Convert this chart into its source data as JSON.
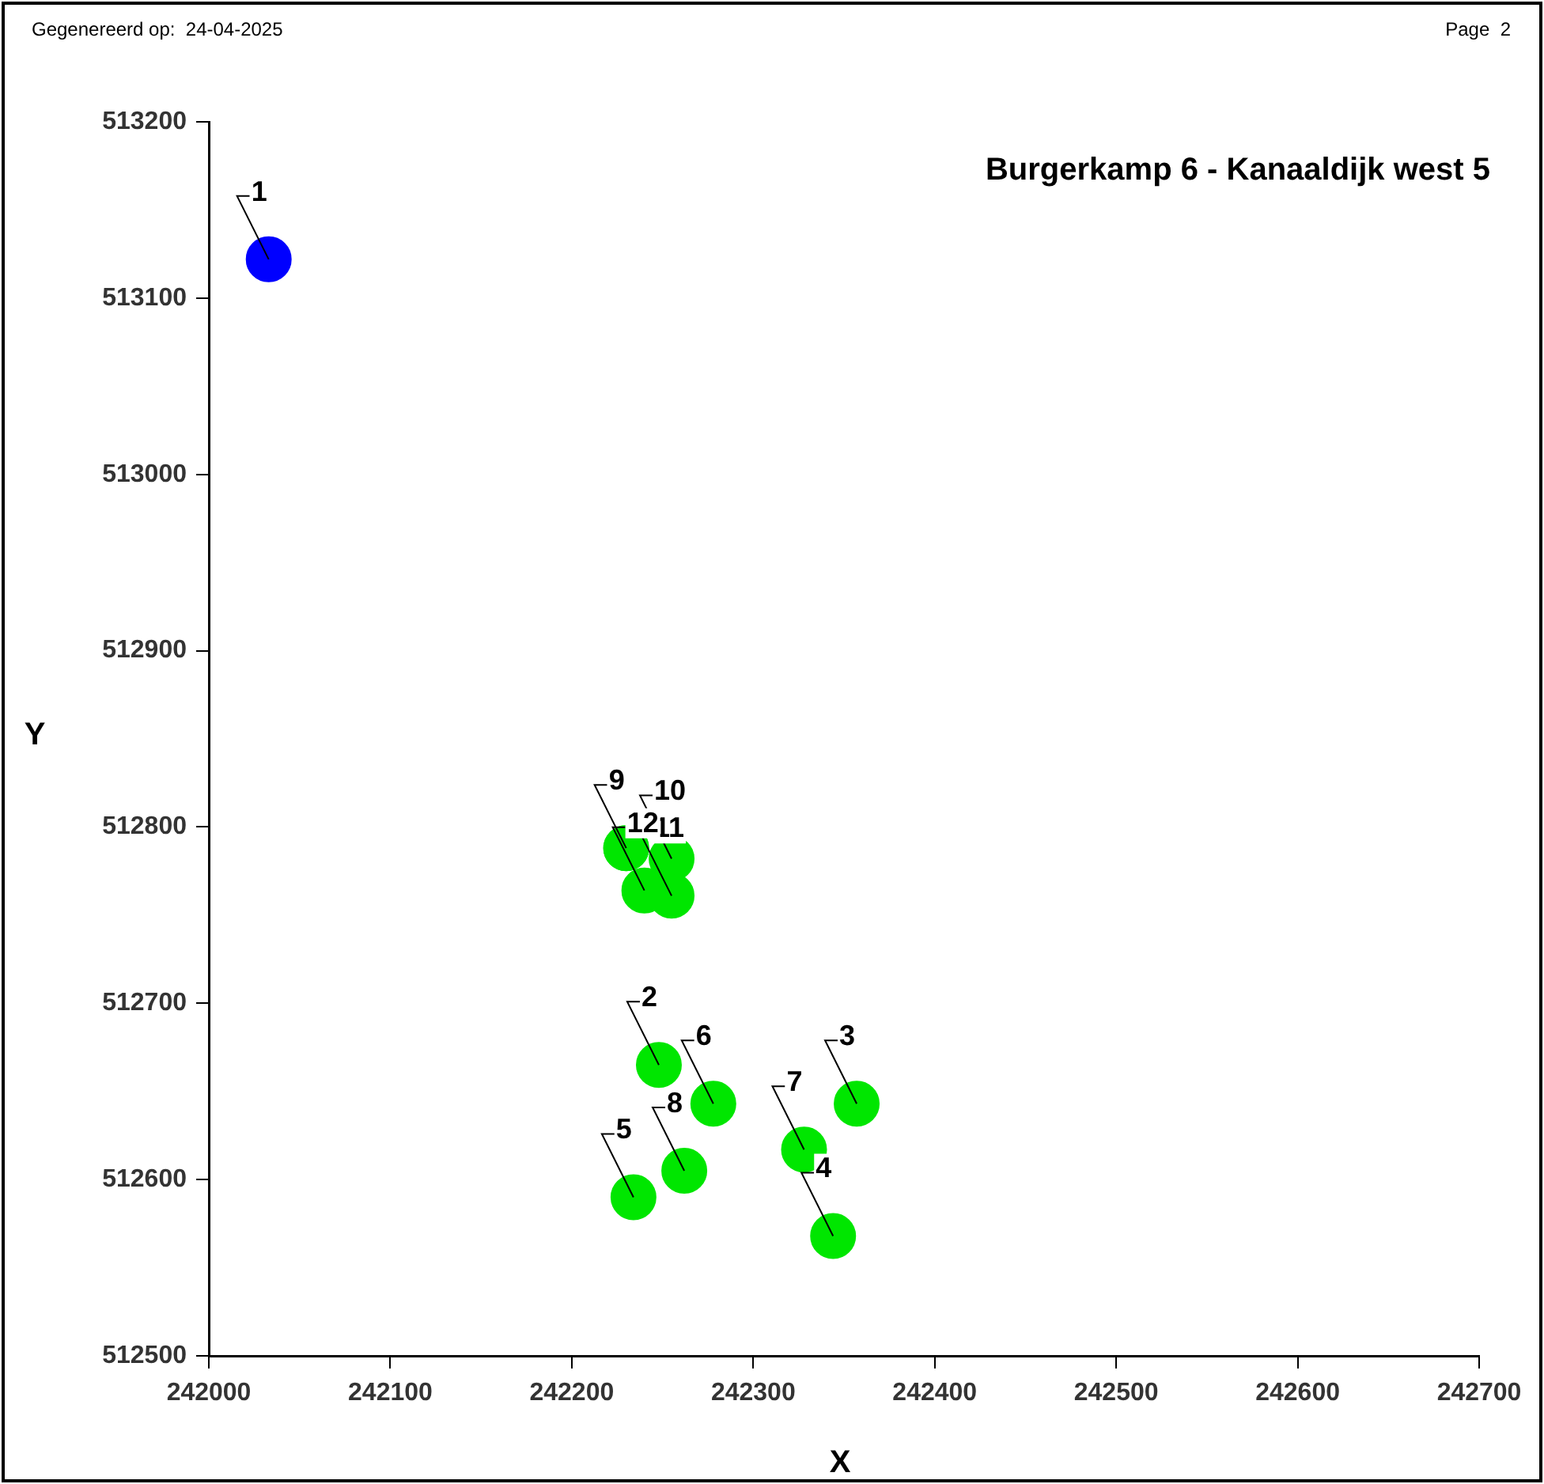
{
  "chart_data": {
    "type": "scatter",
    "title": "Burgerkamp 6 - Kanaaldijk west 5",
    "xlabel": "X",
    "ylabel": "Y",
    "annotations": [
      "Gegenereerd op:  24-04-2025",
      "Page  2",
      {
        "text": "1",
        "x": 242033,
        "y": 513122
      },
      {
        "text": "2",
        "x": 242248,
        "y": 512665
      },
      {
        "text": "3",
        "x": 242357,
        "y": 512643
      },
      {
        "text": "4",
        "x": 242344,
        "y": 512568
      },
      {
        "text": "5",
        "x": 242234,
        "y": 512590
      },
      {
        "text": "6",
        "x": 242278,
        "y": 512643
      },
      {
        "text": "7",
        "x": 242328,
        "y": 512617
      },
      {
        "text": "8",
        "x": 242262,
        "y": 512605
      },
      {
        "text": "9",
        "x": 242230,
        "y": 512788
      },
      {
        "text": "10",
        "x": 242255,
        "y": 512782
      },
      {
        "text": "11",
        "x": 242255,
        "y": 512761
      },
      {
        "text": "12",
        "x": 242240,
        "y": 512764
      }
    ],
    "x": [
      242033,
      242248,
      242357,
      242344,
      242234,
      242278,
      242328,
      242262,
      242230,
      242255,
      242255,
      242240
    ],
    "values": [
      513122,
      512665,
      512643,
      512568,
      512590,
      512643,
      512617,
      512605,
      512788,
      512782,
      512761,
      512764
    ],
    "colors": [
      "#0000ff",
      "#00e600",
      "#00e600",
      "#00e600",
      "#00e600",
      "#00e600",
      "#00e600",
      "#00e600",
      "#00e600",
      "#00e600",
      "#00e600",
      "#00e600"
    ],
    "marker": "circle",
    "grid": false,
    "legend": false,
    "xlim": [
      242000,
      242700
    ],
    "xticks": [
      242000,
      242100,
      242200,
      242300,
      242400,
      242500,
      242600,
      242700
    ],
    "ylim": [
      512500,
      513200
    ],
    "yticks": [
      512500,
      512600,
      512700,
      512800,
      512900,
      513000,
      513100,
      513200
    ]
  }
}
